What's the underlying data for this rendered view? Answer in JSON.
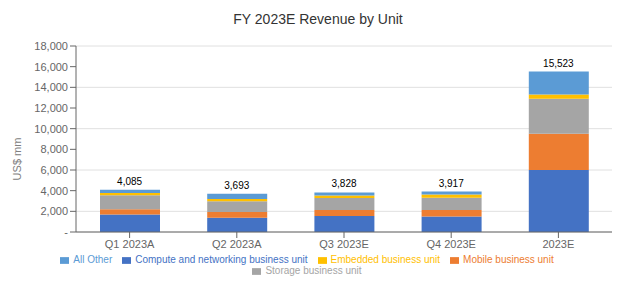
{
  "chart_data": {
    "type": "bar",
    "title": "FY 2023E Revenue by Unit",
    "categories": [
      "Q1 2023A",
      "Q2 2023A",
      "Q3 2023E",
      "Q4 2023E",
      "2023E"
    ],
    "stacked": true,
    "series": [
      {
        "name": "Compute and networking business unit",
        "color": "#4472C4",
        "values": [
          1700,
          1380,
          1550,
          1500,
          6000
        ]
      },
      {
        "name": "Mobile business unit",
        "color": "#ED7D31",
        "values": [
          500,
          550,
          580,
          620,
          3500
        ]
      },
      {
        "name": "Storage business unit",
        "color": "#A5A5A5",
        "values": [
          1350,
          1050,
          1150,
          1200,
          3400
        ]
      },
      {
        "name": "Embedded business unit",
        "color": "#FFC000",
        "values": [
          235,
          213,
          248,
          297,
          400
        ]
      },
      {
        "name": "All Other",
        "color": "#5B9BD5",
        "values": [
          300,
          500,
          300,
          300,
          2223
        ]
      }
    ],
    "annotations": [
      {
        "text": "4,085",
        "x": "Q1 2023A",
        "y": 4085
      },
      {
        "text": "3,693",
        "x": "Q2 2023A",
        "y": 3693
      },
      {
        "text": "3,828",
        "x": "Q3 2023E",
        "y": 3828
      },
      {
        "text": "3,917",
        "x": "Q4 2023E",
        "y": 3917
      },
      {
        "text": "15,523",
        "x": "2023E",
        "y": 15523
      }
    ],
    "ylabel": "US$ mm",
    "ylim": [
      0,
      18000
    ],
    "yticks": [
      {
        "value": 0,
        "label": "-"
      },
      {
        "value": 2000,
        "label": "2,000"
      },
      {
        "value": 4000,
        "label": "4,000"
      },
      {
        "value": 6000,
        "label": "6,000"
      },
      {
        "value": 8000,
        "label": "8,000"
      },
      {
        "value": 10000,
        "label": "10,000"
      },
      {
        "value": 12000,
        "label": "12,000"
      },
      {
        "value": 14000,
        "label": "14,000"
      },
      {
        "value": 16000,
        "label": "16,000"
      },
      {
        "value": 18000,
        "label": "18,000"
      }
    ],
    "grid": true,
    "legend": "bottom"
  }
}
